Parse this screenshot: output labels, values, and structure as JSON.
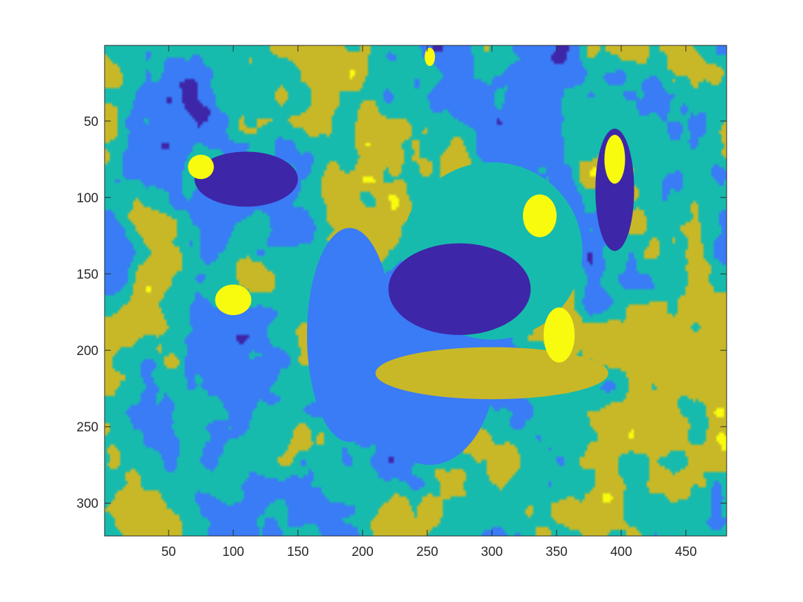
{
  "chart_data": {
    "type": "heatmap",
    "title": "",
    "xlabel": "",
    "ylabel": "",
    "x_range": [
      0.5,
      481.5
    ],
    "y_range": [
      0.5,
      321.5
    ],
    "y_reversed": true,
    "x_ticks": [
      50,
      100,
      150,
      200,
      250,
      300,
      350,
      400,
      450
    ],
    "y_ticks": [
      50,
      100,
      150,
      200,
      250,
      300
    ],
    "x_tick_labels": [
      "50",
      "100",
      "150",
      "200",
      "250",
      "300",
      "350",
      "400",
      "450"
    ],
    "y_tick_labels": [
      "50",
      "100",
      "150",
      "200",
      "250",
      "300"
    ],
    "grid": false,
    "colorbar": false,
    "class_colors": [
      "#3e26a8",
      "#3a7bf6",
      "#17bbad",
      "#c8b827",
      "#f9fb0e"
    ],
    "dominant_class_fractions": {
      "#17bbad": 0.34,
      "#c8b827": 0.3,
      "#3a7bf6": 0.28,
      "#3e26a8": 0.06,
      "#f9fb0e": 0.02
    },
    "regions": [
      {
        "color": "#3a7bf6",
        "cx": 190,
        "cy": 190,
        "rx": 33,
        "ry": 70
      },
      {
        "color": "#3a7bf6",
        "cx": 252,
        "cy": 205,
        "rx": 52,
        "ry": 70
      },
      {
        "color": "#17bbad",
        "cx": 300,
        "cy": 135,
        "rx": 70,
        "ry": 58
      },
      {
        "color": "#c8b827",
        "cx": 300,
        "cy": 215,
        "rx": 90,
        "ry": 17
      },
      {
        "color": "#3e26a8",
        "cx": 275,
        "cy": 160,
        "rx": 55,
        "ry": 30
      },
      {
        "color": "#3e26a8",
        "cx": 110,
        "cy": 88,
        "rx": 40,
        "ry": 18
      },
      {
        "color": "#3e26a8",
        "cx": 395,
        "cy": 95,
        "rx": 15,
        "ry": 40
      },
      {
        "color": "#f9fb0e",
        "cx": 75,
        "cy": 80,
        "rx": 10,
        "ry": 8
      },
      {
        "color": "#f9fb0e",
        "cx": 100,
        "cy": 167,
        "rx": 14,
        "ry": 10
      },
      {
        "color": "#f9fb0e",
        "cx": 352,
        "cy": 190,
        "rx": 12,
        "ry": 18
      },
      {
        "color": "#f9fb0e",
        "cx": 395,
        "cy": 75,
        "rx": 8,
        "ry": 16
      },
      {
        "color": "#f9fb0e",
        "cx": 337,
        "cy": 112,
        "rx": 13,
        "ry": 14
      },
      {
        "color": "#f9fb0e",
        "cx": 252,
        "cy": 8,
        "rx": 4,
        "ry": 6
      }
    ]
  }
}
